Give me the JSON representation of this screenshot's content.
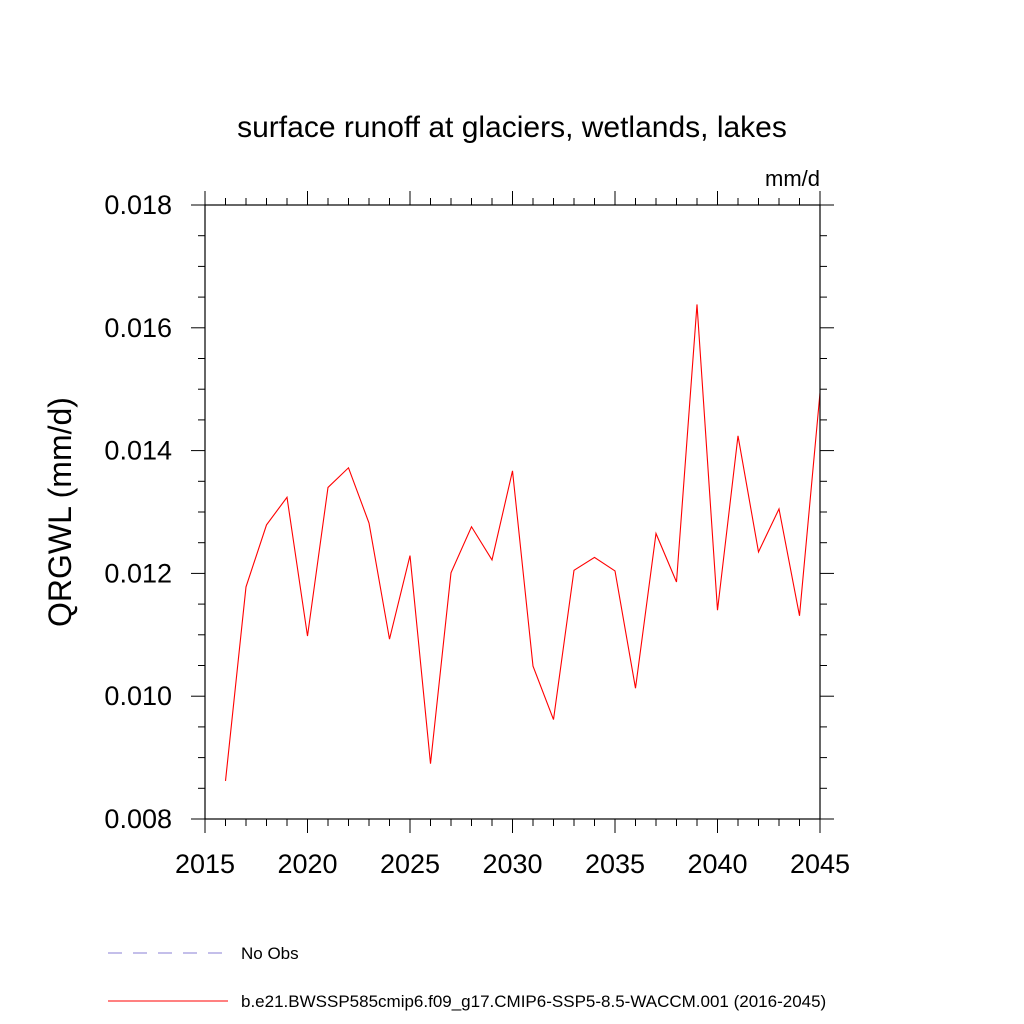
{
  "chart_data": {
    "type": "line",
    "title": "surface runoff at glaciers, wetlands, lakes",
    "units": "mm/d",
    "xlabel": "",
    "ylabel": "QRGWL  (mm/d)",
    "xlim": [
      2015,
      2045
    ],
    "ylim": [
      0.008,
      0.018
    ],
    "xticks": [
      2015,
      2020,
      2025,
      2030,
      2035,
      2040,
      2045
    ],
    "xtick_labels": [
      "2015",
      "2020",
      "2025",
      "2030",
      "2035",
      "2040",
      "2045"
    ],
    "yticks": [
      0.008,
      0.01,
      0.012,
      0.014,
      0.016,
      0.018
    ],
    "ytick_labels": [
      "0.008",
      "0.010",
      "0.012",
      "0.014",
      "0.016",
      "0.018"
    ],
    "grid": false,
    "series": [
      {
        "name": "b.e21.BWSSP585cmip6.f09_g17.CMIP6-SSP5-8.5-WACCM.001 (2016-2045)",
        "color": "#ff0000",
        "x": [
          2016,
          2017,
          2018,
          2019,
          2020,
          2021,
          2022,
          2023,
          2024,
          2025,
          2026,
          2027,
          2028,
          2029,
          2030,
          2031,
          2032,
          2033,
          2034,
          2035,
          2036,
          2037,
          2038,
          2039,
          2040,
          2041,
          2042,
          2043,
          2044,
          2045
        ],
        "values": [
          0.00862,
          0.01178,
          0.01279,
          0.01324,
          0.01098,
          0.0134,
          0.01372,
          0.01282,
          0.01093,
          0.01229,
          0.0089,
          0.01201,
          0.01276,
          0.01222,
          0.01367,
          0.01049,
          0.00962,
          0.01205,
          0.01226,
          0.01204,
          0.01013,
          0.01265,
          0.01186,
          0.01638,
          0.0114,
          0.01424,
          0.01235,
          0.01305,
          0.01131,
          0.01494
        ]
      }
    ],
    "legend": {
      "placement": "bottom-left",
      "entries": [
        {
          "label": "No Obs",
          "style": "dashed",
          "color": "#8a7fd6"
        },
        {
          "label": "b.e21.BWSSP585cmip6.f09_g17.CMIP6-SSP5-8.5-WACCM.001 (2016-2045)",
          "style": "solid",
          "color": "#ff0000"
        }
      ]
    }
  }
}
